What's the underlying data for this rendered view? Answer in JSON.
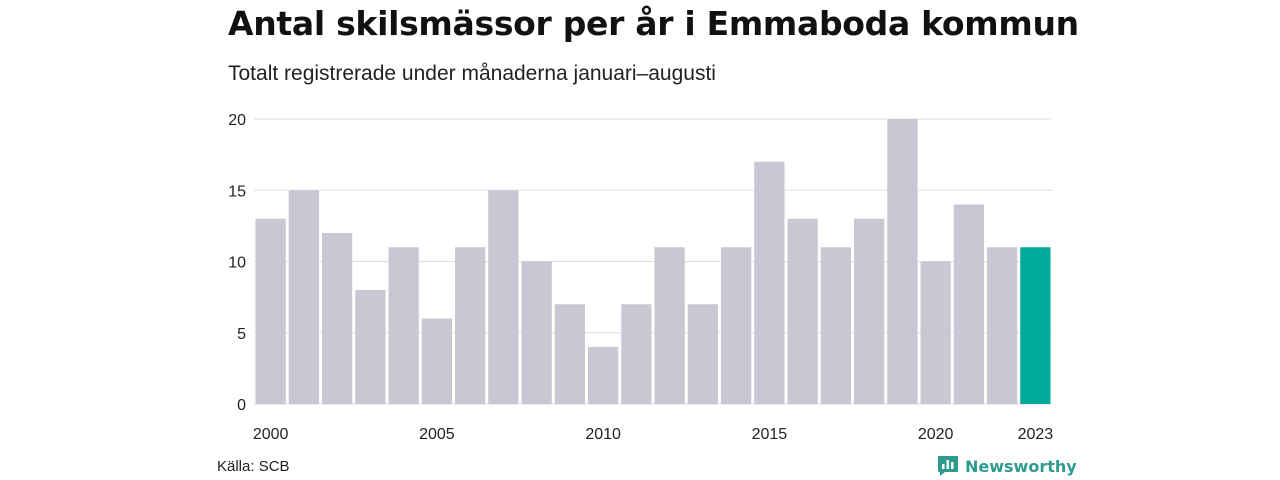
{
  "header": {
    "title": "Antal skilsmässor per år i Emmaboda kommun",
    "subtitle": "Totalt registrerade under månaderna januari–augusti"
  },
  "footer": {
    "source": "Källa: SCB",
    "brand": "Newsworthy",
    "brand_icon": "bar-chart-speech-bubble-icon"
  },
  "colors": {
    "bar": "#c8c7d3",
    "highlight": "#00a99a",
    "grid": "#dddddd",
    "brand": "#2e9b90"
  },
  "chart_data": {
    "type": "bar",
    "title": "Antal skilsmässor per år i Emmaboda kommun",
    "subtitle": "Totalt registrerade under månaderna januari–augusti",
    "categories": [
      "2000",
      "2001",
      "2002",
      "2003",
      "2004",
      "2005",
      "2006",
      "2007",
      "2008",
      "2009",
      "2010",
      "2011",
      "2012",
      "2013",
      "2014",
      "2015",
      "2016",
      "2017",
      "2018",
      "2019",
      "2020",
      "2021",
      "2022",
      "2023"
    ],
    "values": [
      13,
      15,
      12,
      8,
      11,
      6,
      11,
      15,
      10,
      7,
      4,
      7,
      11,
      7,
      11,
      17,
      13,
      11,
      13,
      20,
      10,
      14,
      11,
      11
    ],
    "highlight_category": "2023",
    "x_tick_labels": [
      "2000",
      "2005",
      "2010",
      "2015",
      "2020",
      "2023"
    ],
    "y_ticks": [
      0,
      5,
      10,
      15,
      20
    ],
    "ylim": [
      0,
      20
    ],
    "xlabel": "",
    "ylabel": "",
    "grid": true,
    "legend": "none"
  }
}
